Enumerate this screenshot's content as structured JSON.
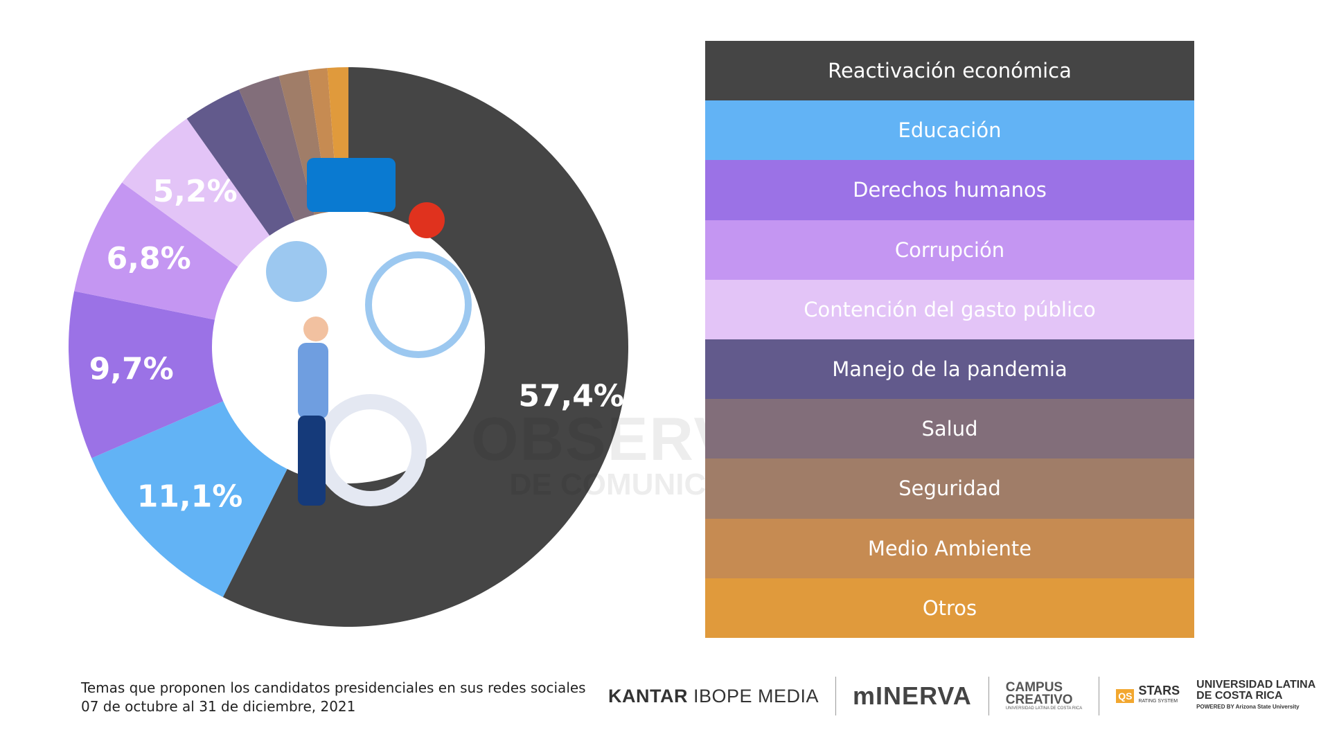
{
  "chart_data": {
    "type": "pie",
    "variant": "donut",
    "title": "Temas que proponen los candidatos presidenciales en sus redes sociales",
    "subtitle": "07 de octubre al 31 de diciembre, 2021",
    "categories": [
      "Reactivación económica",
      "Educación",
      "Derechos humanos",
      "Corrupción",
      "Contención del gasto público",
      "Manejo de la pandemia",
      "Salud",
      "Seguridad",
      "Medio Ambiente",
      "Otros"
    ],
    "values": [
      57.4,
      11.1,
      9.7,
      6.8,
      5.2,
      3.4,
      2.4,
      1.7,
      1.1,
      1.2
    ],
    "labels": [
      "57,4%",
      "11,1%",
      "9,7%",
      "6,8%",
      "5,2%",
      "",
      "",
      "",
      "",
      ""
    ],
    "colors": [
      "#454545",
      "#62b3f5",
      "#9b72e6",
      "#c496f2",
      "#e3c4f7",
      "#625a8c",
      "#826e7a",
      "#a07d68",
      "#c68b52",
      "#e09a3c"
    ],
    "legend_placement": "right"
  },
  "watermark": {
    "line1": "OBSERVATORIO",
    "line2": "DE COMUNICACIÓN DIGITAL"
  },
  "caption": {
    "line1": "Temas que proponen los candidatos presidenciales en sus redes sociales",
    "line2": "07 de octubre al 31 de diciembre, 2021"
  },
  "logos": {
    "kantar_bold": "KANTAR",
    "kantar_rest": "IBOPE MEDIA",
    "minerva": "mINERVA",
    "campus": "CAMPUS",
    "campus2": "CREATIVO",
    "campus_sub": "UNIVERSIDAD LATINA DE COSTA RICA",
    "qs": "QS",
    "stars": "STARS",
    "stars_sub": "RATING SYSTEM",
    "ulat1": "UNIVERSIDAD LATINA",
    "ulat2": "DE COSTA RICA",
    "ulat_sub": "POWERED BY Arizona State University"
  }
}
